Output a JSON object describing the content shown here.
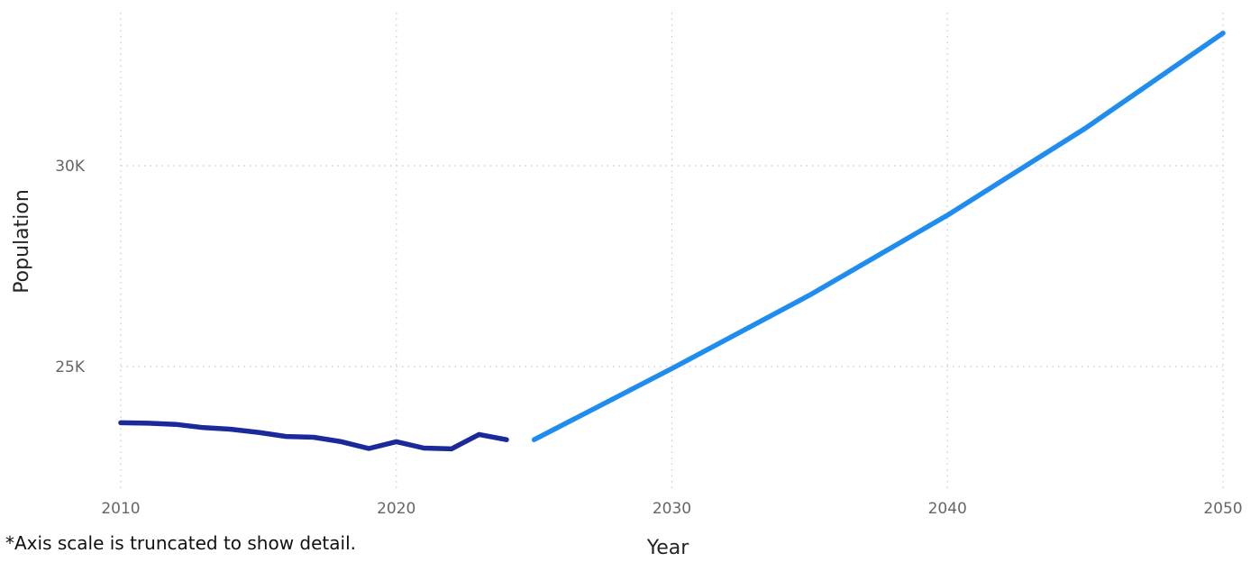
{
  "chart_data": {
    "type": "line",
    "title": "",
    "xlabel": "Year",
    "ylabel": "Population",
    "xlim": [
      2010,
      2050
    ],
    "ylim": [
      21500,
      34000
    ],
    "x_ticks": [
      2010,
      2020,
      2030,
      2040,
      2050
    ],
    "x_tick_labels": [
      "2010",
      "2020",
      "2030",
      "2040",
      "2050"
    ],
    "y_ticks": [
      25000,
      30000
    ],
    "y_tick_labels": [
      "25K",
      "30K"
    ],
    "grid": true,
    "legend": "none",
    "series": [
      {
        "color": "#1a2a9a",
        "x": [
          2010,
          2011,
          2012,
          2013,
          2014,
          2015,
          2016,
          2017,
          2018,
          2019,
          2020,
          2021,
          2022,
          2023,
          2024
        ],
        "y": [
          23600,
          23590,
          23560,
          23480,
          23440,
          23360,
          23260,
          23240,
          23130,
          22960,
          23130,
          22970,
          22950,
          23310,
          23180
        ]
      },
      {
        "color": "#1f8cf0",
        "x": [
          2025,
          2030,
          2035,
          2040,
          2045,
          2050
        ],
        "y": [
          23180,
          24950,
          26780,
          28770,
          30930,
          33300
        ]
      }
    ]
  },
  "footnote": "*Axis scale is truncated to show detail."
}
